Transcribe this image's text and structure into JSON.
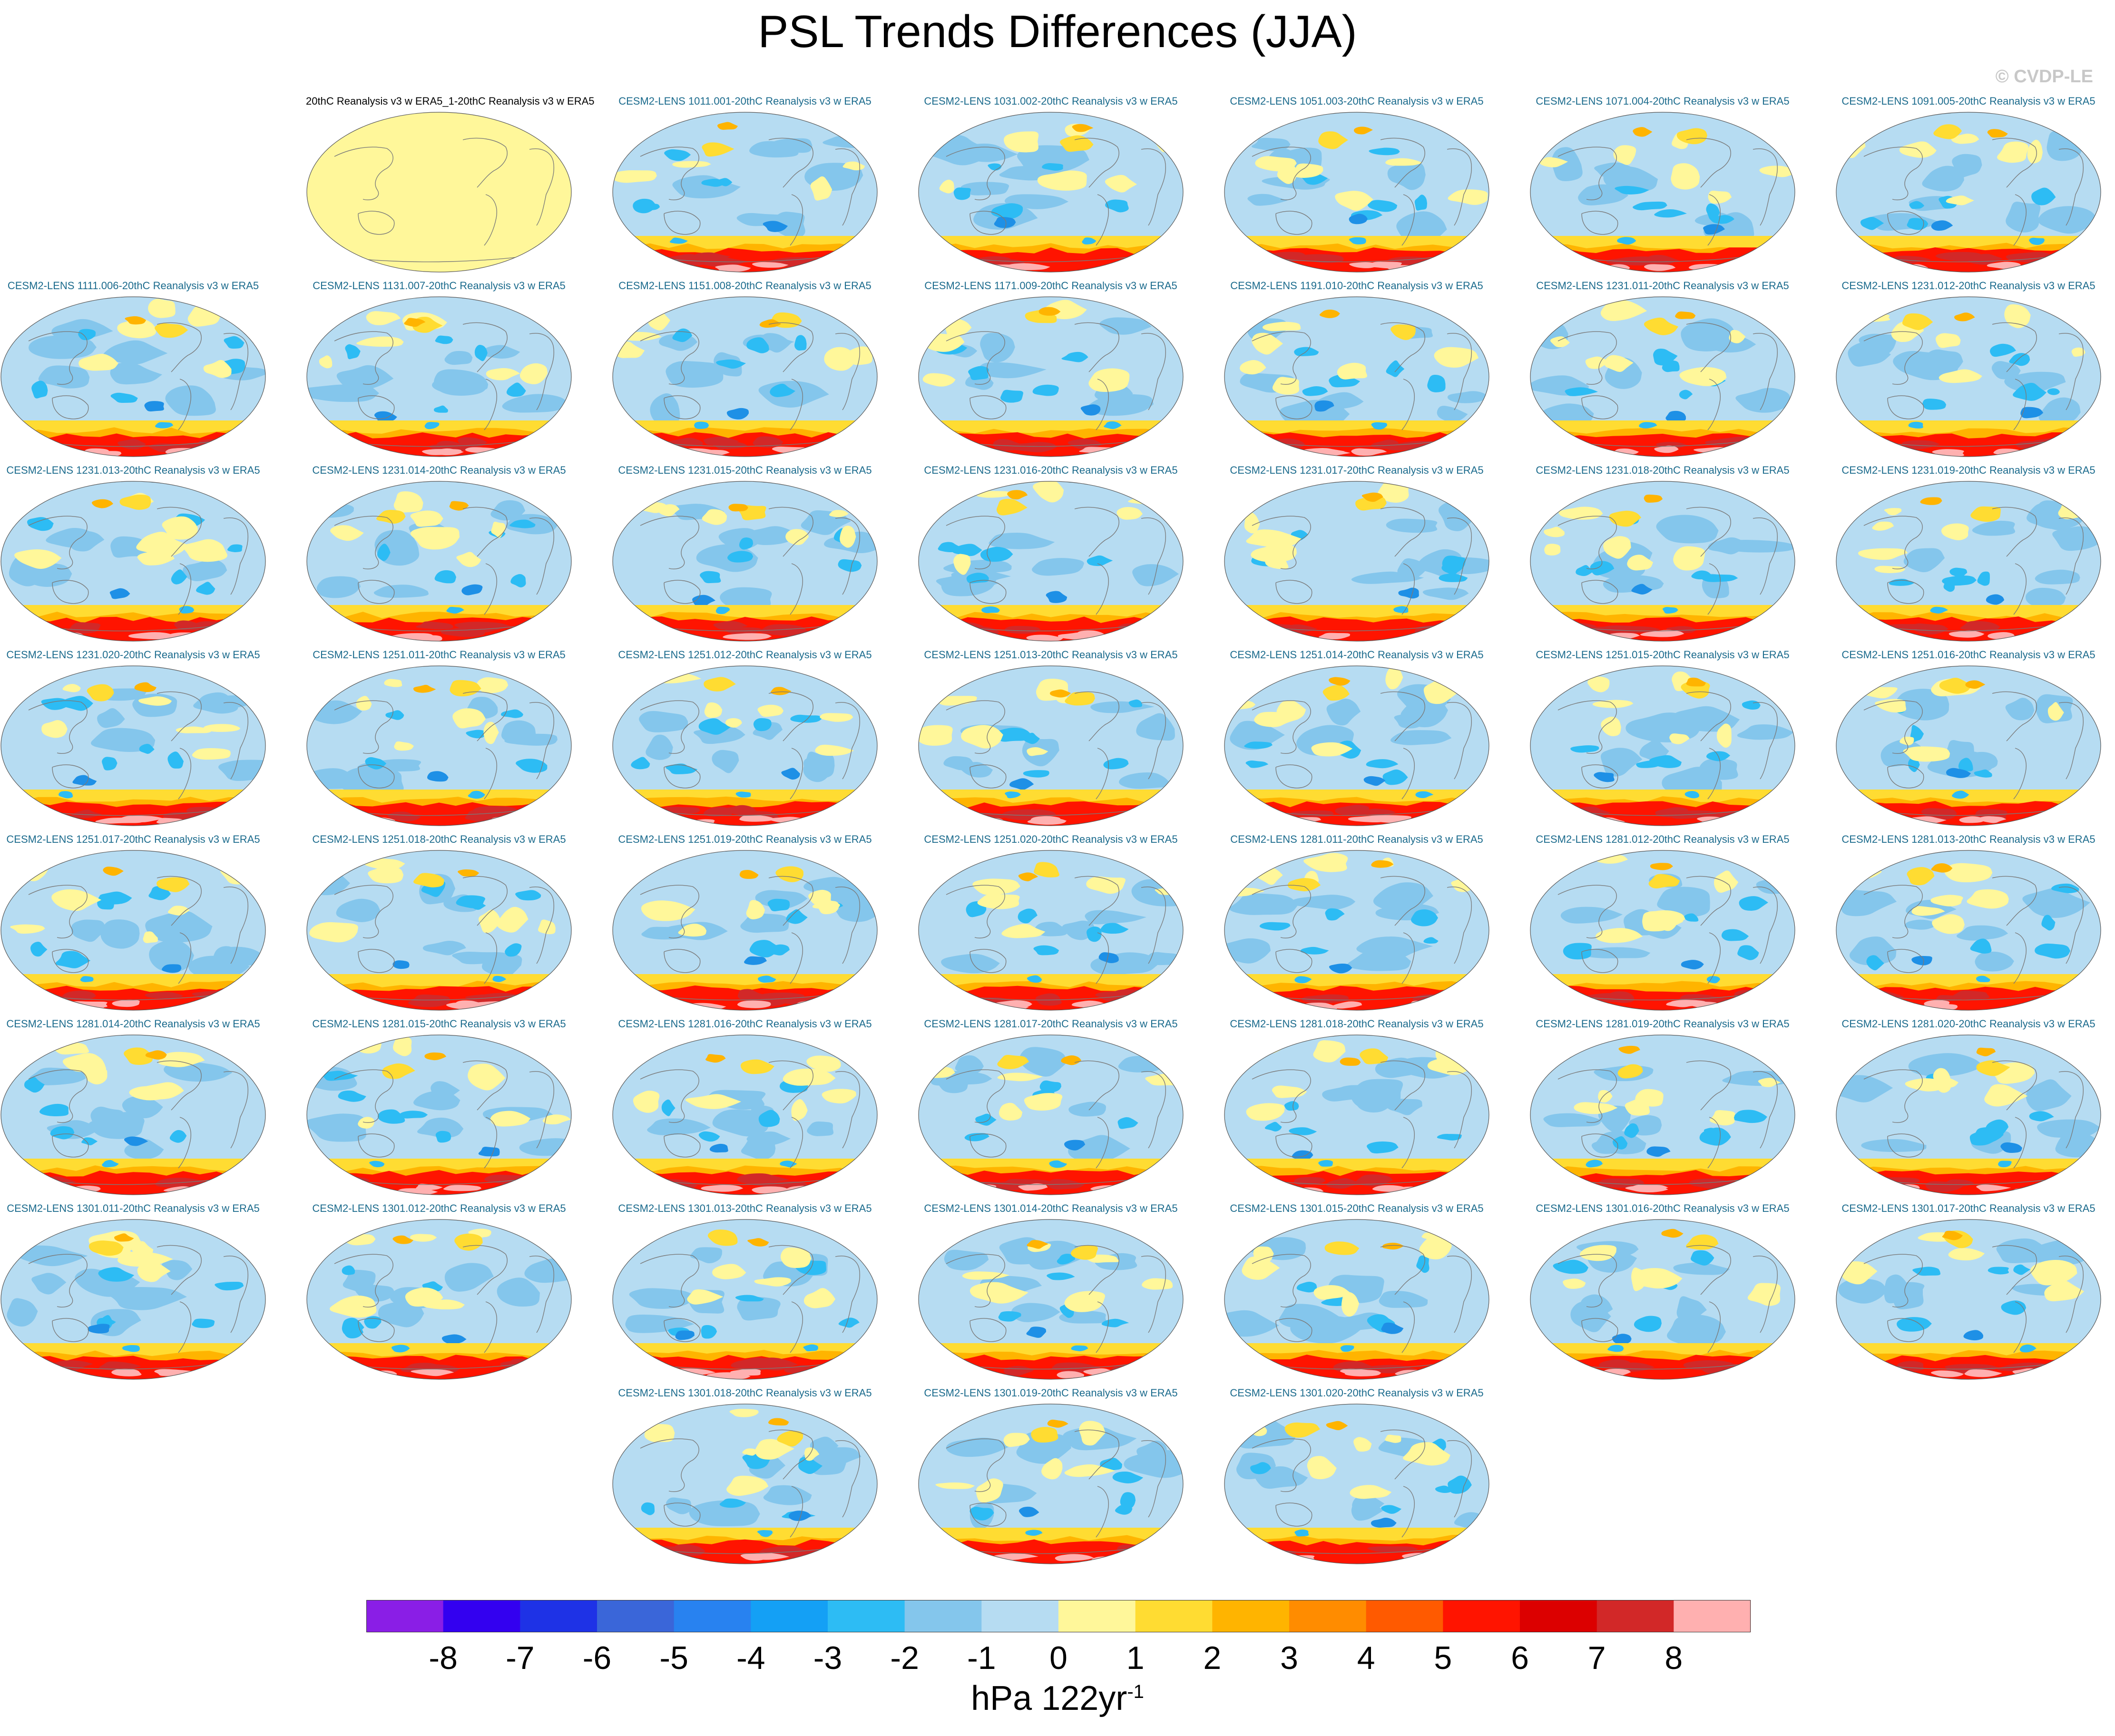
{
  "title": "PSL Trends Differences (JJA)",
  "watermark": "© CVDP-LE",
  "observation_panel": {
    "title": "20thC Reanalysis v3 w ERA5_1-20thC Reanalysis v3 w ERA5"
  },
  "member_panels": [
    "CESM2-LENS 1011.001-20thC Reanalysis v3 w ERA5",
    "CESM2-LENS 1031.002-20thC Reanalysis v3 w ERA5",
    "CESM2-LENS 1051.003-20thC Reanalysis v3 w ERA5",
    "CESM2-LENS 1071.004-20thC Reanalysis v3 w ERA5",
    "CESM2-LENS 1091.005-20thC Reanalysis v3 w ERA5",
    "CESM2-LENS 1111.006-20thC Reanalysis v3 w ERA5",
    "CESM2-LENS 1131.007-20thC Reanalysis v3 w ERA5",
    "CESM2-LENS 1151.008-20thC Reanalysis v3 w ERA5",
    "CESM2-LENS 1171.009-20thC Reanalysis v3 w ERA5",
    "CESM2-LENS 1191.010-20thC Reanalysis v3 w ERA5",
    "CESM2-LENS 1231.011-20thC Reanalysis v3 w ERA5",
    "CESM2-LENS 1231.012-20thC Reanalysis v3 w ERA5",
    "CESM2-LENS 1231.013-20thC Reanalysis v3 w ERA5",
    "CESM2-LENS 1231.014-20thC Reanalysis v3 w ERA5",
    "CESM2-LENS 1231.015-20thC Reanalysis v3 w ERA5",
    "CESM2-LENS 1231.016-20thC Reanalysis v3 w ERA5",
    "CESM2-LENS 1231.017-20thC Reanalysis v3 w ERA5",
    "CESM2-LENS 1231.018-20thC Reanalysis v3 w ERA5",
    "CESM2-LENS 1231.019-20thC Reanalysis v3 w ERA5",
    "CESM2-LENS 1231.020-20thC Reanalysis v3 w ERA5",
    "CESM2-LENS 1251.011-20thC Reanalysis v3 w ERA5",
    "CESM2-LENS 1251.012-20thC Reanalysis v3 w ERA5",
    "CESM2-LENS 1251.013-20thC Reanalysis v3 w ERA5",
    "CESM2-LENS 1251.014-20thC Reanalysis v3 w ERA5",
    "CESM2-LENS 1251.015-20thC Reanalysis v3 w ERA5",
    "CESM2-LENS 1251.016-20thC Reanalysis v3 w ERA5",
    "CESM2-LENS 1251.017-20thC Reanalysis v3 w ERA5",
    "CESM2-LENS 1251.018-20thC Reanalysis v3 w ERA5",
    "CESM2-LENS 1251.019-20thC Reanalysis v3 w ERA5",
    "CESM2-LENS 1251.020-20thC Reanalysis v3 w ERA5",
    "CESM2-LENS 1281.011-20thC Reanalysis v3 w ERA5",
    "CESM2-LENS 1281.012-20thC Reanalysis v3 w ERA5",
    "CESM2-LENS 1281.013-20thC Reanalysis v3 w ERA5",
    "CESM2-LENS 1281.014-20thC Reanalysis v3 w ERA5",
    "CESM2-LENS 1281.015-20thC Reanalysis v3 w ERA5",
    "CESM2-LENS 1281.016-20thC Reanalysis v3 w ERA5",
    "CESM2-LENS 1281.017-20thC Reanalysis v3 w ERA5",
    "CESM2-LENS 1281.018-20thC Reanalysis v3 w ERA5",
    "CESM2-LENS 1281.019-20thC Reanalysis v3 w ERA5",
    "CESM2-LENS 1281.020-20thC Reanalysis v3 w ERA5",
    "CESM2-LENS 1301.011-20thC Reanalysis v3 w ERA5",
    "CESM2-LENS 1301.012-20thC Reanalysis v3 w ERA5",
    "CESM2-LENS 1301.013-20thC Reanalysis v3 w ERA5",
    "CESM2-LENS 1301.014-20thC Reanalysis v3 w ERA5",
    "CESM2-LENS 1301.015-20thC Reanalysis v3 w ERA5",
    "CESM2-LENS 1301.016-20thC Reanalysis v3 w ERA5",
    "CESM2-LENS 1301.017-20thC Reanalysis v3 w ERA5",
    "CESM2-LENS 1301.018-20thC Reanalysis v3 w ERA5",
    "CESM2-LENS 1301.019-20thC Reanalysis v3 w ERA5",
    "CESM2-LENS 1301.020-20thC Reanalysis v3 w ERA5"
  ],
  "colorbar": {
    "colors": [
      "#8a1ee6",
      "#3300f0",
      "#1e32e6",
      "#3a66d9",
      "#2882f0",
      "#14a0f5",
      "#2dbcf4",
      "#84c6ec",
      "#b6dcf2",
      "#fff79a",
      "#ffdc32",
      "#ffb400",
      "#ff8c00",
      "#ff5a00",
      "#ff1400",
      "#dc0000",
      "#d22828",
      "#ffb0b0"
    ],
    "tick_labels": [
      "-8",
      "-7",
      "-6",
      "-5",
      "-4",
      "-3",
      "-2",
      "-1",
      "0",
      "1",
      "2",
      "3",
      "4",
      "5",
      "6",
      "7",
      "8"
    ],
    "label_main": "hPa 122yr",
    "label_sup": "-1"
  },
  "palette": {
    "obs_fill": "#fff79a",
    "base_fill": "#b6dcf2",
    "mid_blue": "#84c6ec",
    "blue": "#2dbcf4",
    "dark_blue": "#1e90e6",
    "yellow": "#fff79a",
    "gold": "#ffdc32",
    "orange": "#ffb400",
    "red": "#ff1400",
    "dark_red": "#d22828",
    "pink": "#ffb0b0",
    "coast": "#7a7a7a",
    "title_obs": "#000000",
    "title_member": "#1a6a8c"
  }
}
